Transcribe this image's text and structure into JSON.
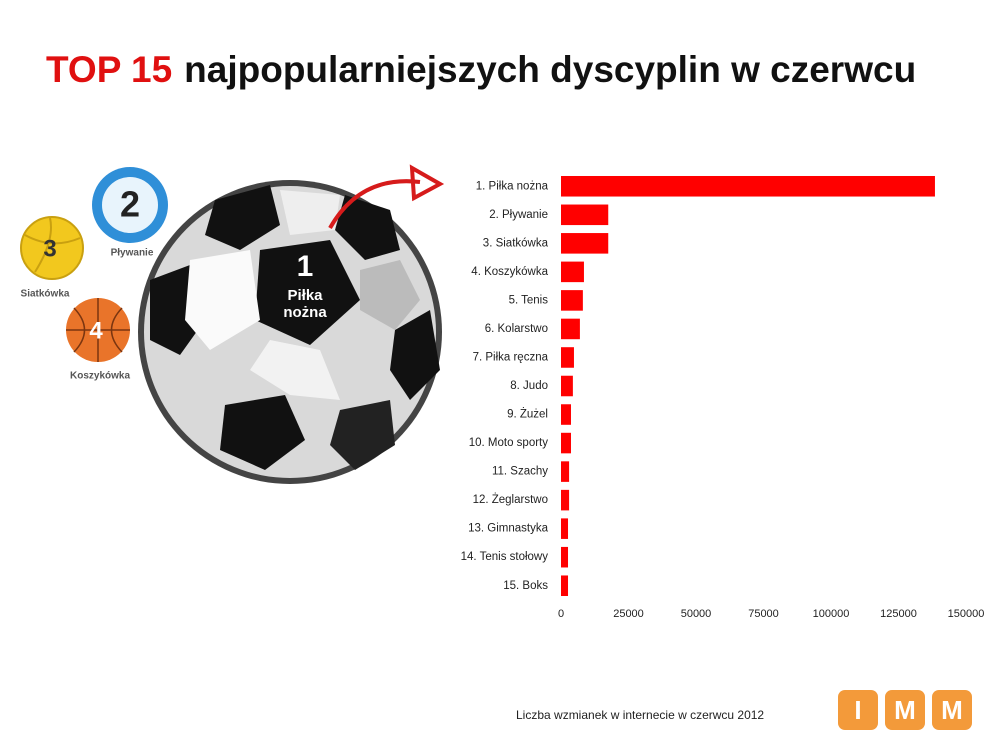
{
  "chart_data": {
    "type": "bar",
    "orientation": "horizontal",
    "title_highlight": "TOP 15",
    "title": "najpopularniejszych dyscyplin w czerwcu",
    "footnote": "Liczba wzmianek w internecie w czerwcu 2012",
    "categories": [
      "1. Piłka nożna",
      "2. Pływanie",
      "3. Siatkówka",
      "4. Koszykówka",
      "5. Tenis",
      "6. Kolarstwo",
      "7. Piłka ręczna",
      "8. Judo",
      "9. Żużel",
      "10. Moto sporty",
      "11. Szachy",
      "12. Żeglarstwo",
      "13. Gimnastyka",
      "14. Tenis stołowy",
      "15. Boks"
    ],
    "values": [
      138500,
      17500,
      17500,
      8500,
      8100,
      7000,
      4800,
      4400,
      3700,
      3700,
      3000,
      3000,
      2600,
      2600,
      2600
    ],
    "color": "#ff0000",
    "xlim": [
      0,
      150000
    ],
    "xticks": [
      0,
      25000,
      50000,
      75000,
      100000,
      125000,
      150000
    ],
    "grid": false
  },
  "illustration": {
    "first": {
      "rank": "1",
      "label": [
        "Piłka",
        "nożna"
      ]
    },
    "second": {
      "rank": "2",
      "label": "Pływanie"
    },
    "third": {
      "rank": "3",
      "label": "Siatkówka"
    },
    "fourth": {
      "rank": "4",
      "label": "Koszykówka"
    }
  },
  "logo": [
    "I",
    "M",
    "M"
  ]
}
